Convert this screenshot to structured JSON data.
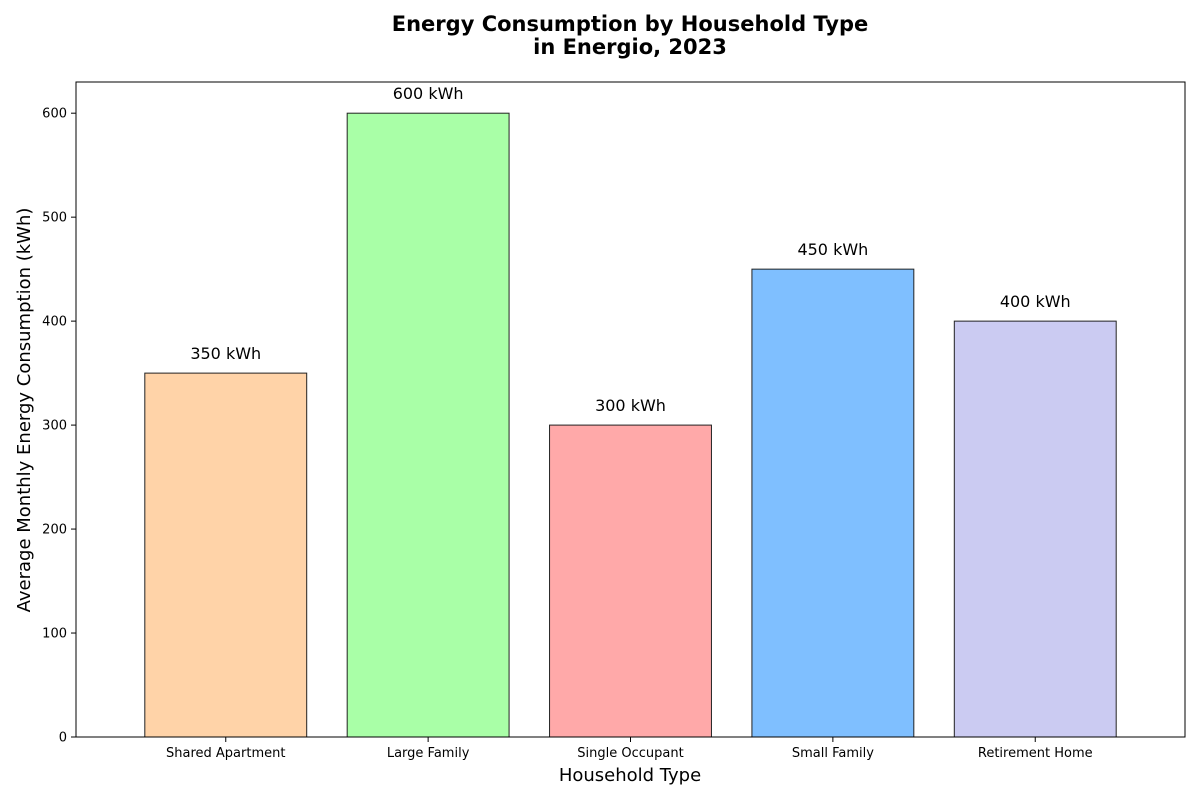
{
  "chart_data": {
    "type": "bar",
    "title_lines": [
      "Energy Consumption by Household Type",
      "in Energio, 2023"
    ],
    "xlabel": "Household Type",
    "ylabel": "Average Monthly Energy Consumption (kWh)",
    "categories": [
      "Shared Apartment",
      "Large Family",
      "Single Occupant",
      "Small Family",
      "Retirement Home"
    ],
    "values": [
      350,
      600,
      300,
      450,
      400
    ],
    "data_labels": [
      "350 kWh",
      "600 kWh",
      "300 kWh",
      "450 kWh",
      "400 kWh"
    ],
    "colors": [
      "#ffd3a8",
      "#a9ffa7",
      "#ffa9a9",
      "#7fbfff",
      "#cbcbf2"
    ],
    "edge_color": "#222222",
    "ylim": [
      0,
      630
    ],
    "yticks": [
      0,
      100,
      200,
      300,
      400,
      500,
      600
    ],
    "grid": false,
    "legend": "none"
  }
}
